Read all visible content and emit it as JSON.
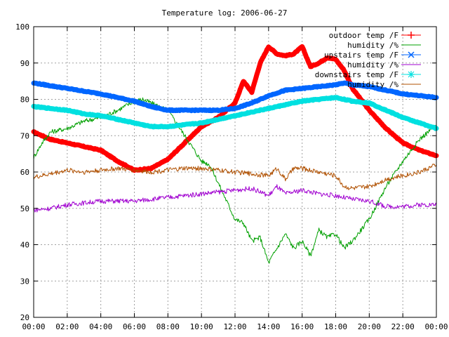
{
  "chart_data": {
    "type": "line",
    "title": "Temperature log: 2006-06-27",
    "xlabel": "",
    "ylabel": "",
    "ylim": [
      20,
      100
    ],
    "xlim": [
      0,
      24
    ],
    "x_ticks": [
      "00:00",
      "02:00",
      "04:00",
      "06:00",
      "08:00",
      "10:00",
      "12:00",
      "14:00",
      "16:00",
      "18:00",
      "20:00",
      "22:00",
      "00:00"
    ],
    "y_ticks": [
      "20",
      "30",
      "40",
      "50",
      "60",
      "70",
      "80",
      "90",
      "100"
    ],
    "grid": true,
    "legend_position": "top-right",
    "series": [
      {
        "name": "outdoor temp /F",
        "color": "#ff0000",
        "marker": "plus",
        "x": [
          0,
          1,
          2,
          3,
          4,
          5,
          6,
          7,
          8,
          9,
          10,
          11,
          12,
          12.5,
          13,
          13.5,
          14,
          14.5,
          15,
          15.5,
          16,
          16.5,
          17,
          17.5,
          18,
          18.5,
          19,
          19.5,
          20,
          21,
          22,
          23,
          24
        ],
        "values": [
          71,
          69,
          68,
          67,
          66,
          63,
          60.5,
          61,
          63.5,
          68,
          72.5,
          75,
          79,
          85,
          82,
          90,
          94.5,
          92.5,
          92,
          92.5,
          94.5,
          89,
          90,
          91.5,
          91,
          88,
          83,
          80,
          77,
          72,
          68,
          66,
          64.5
        ]
      },
      {
        "name": "humidity /%",
        "color": "#00a000",
        "marker": "none",
        "x": [
          0,
          0.5,
          1,
          2,
          3,
          4,
          5,
          6,
          6.5,
          7,
          8,
          9,
          10,
          10.5,
          11,
          11.5,
          12,
          12.5,
          13,
          13.5,
          14,
          14.5,
          15,
          15.5,
          16,
          16.5,
          17,
          17.5,
          18,
          18.5,
          19,
          20,
          21,
          22,
          23,
          24
        ],
        "values": [
          64,
          68,
          71,
          72,
          74,
          75,
          77,
          79.5,
          80,
          79,
          77,
          70,
          63,
          62,
          57,
          52,
          47,
          46,
          41,
          42,
          35,
          39,
          43,
          39,
          41,
          37,
          44,
          42,
          43,
          39,
          41,
          47,
          56,
          63,
          69,
          73
        ]
      },
      {
        "name": "upstairs temp /F",
        "color": "#0066ff",
        "marker": "x",
        "x": [
          0,
          2,
          4,
          6,
          7,
          8,
          9,
          10,
          11,
          12,
          13,
          14,
          15,
          16,
          17,
          18,
          18.5,
          19,
          20,
          21,
          22,
          23,
          24
        ],
        "values": [
          84.5,
          83,
          81.5,
          79.5,
          78,
          77,
          77,
          77,
          77,
          77.5,
          79,
          81,
          82.5,
          83,
          83.5,
          84,
          84.5,
          84,
          83.5,
          82.5,
          81.5,
          81,
          80.5
        ]
      },
      {
        "name": "humidity /%",
        "color": "#a000d0",
        "marker": "none",
        "x": [
          0,
          1,
          2,
          3,
          4,
          5,
          6,
          7,
          8,
          9,
          10,
          11,
          12,
          13,
          14,
          14.5,
          15,
          15.5,
          16,
          17,
          18,
          19,
          20,
          21,
          22,
          23,
          24
        ],
        "values": [
          49.5,
          50,
          51,
          51.5,
          52,
          52,
          52,
          52.5,
          53,
          53.5,
          54,
          54.5,
          55,
          55.5,
          53.5,
          56,
          54,
          54.5,
          55,
          54,
          53.5,
          52.5,
          52,
          50.5,
          50.5,
          51,
          51
        ]
      },
      {
        "name": "downstairs temp /F",
        "color": "#00e0e0",
        "marker": "star",
        "x": [
          0,
          1,
          2,
          3,
          4,
          5,
          6,
          7,
          8,
          9,
          10,
          11,
          12,
          13,
          14,
          15,
          16,
          17,
          18,
          19,
          20,
          21,
          22,
          23,
          24
        ],
        "values": [
          78,
          77.5,
          77,
          76,
          75.5,
          74.5,
          73.5,
          72.5,
          72.5,
          73,
          73.5,
          74.5,
          75.5,
          76.5,
          77.5,
          78.5,
          79.5,
          80,
          80.5,
          79.5,
          79,
          77,
          75,
          73.5,
          72
        ]
      },
      {
        "name": "humidity /%",
        "color": "#b05000",
        "marker": "none",
        "x": [
          0,
          1,
          2,
          3,
          4,
          5,
          6,
          7,
          8,
          9,
          10,
          11,
          12,
          13,
          14,
          14.5,
          15,
          15.5,
          16,
          17,
          18,
          18.5,
          19,
          20,
          21,
          22,
          23,
          24
        ],
        "values": [
          58.5,
          59.5,
          60.5,
          60,
          60.5,
          61,
          60.5,
          60,
          60.5,
          61,
          61,
          60.5,
          60,
          59.5,
          59,
          61,
          58,
          61,
          61,
          60,
          59,
          56,
          55.5,
          56,
          58,
          59,
          60,
          62
        ]
      }
    ]
  }
}
